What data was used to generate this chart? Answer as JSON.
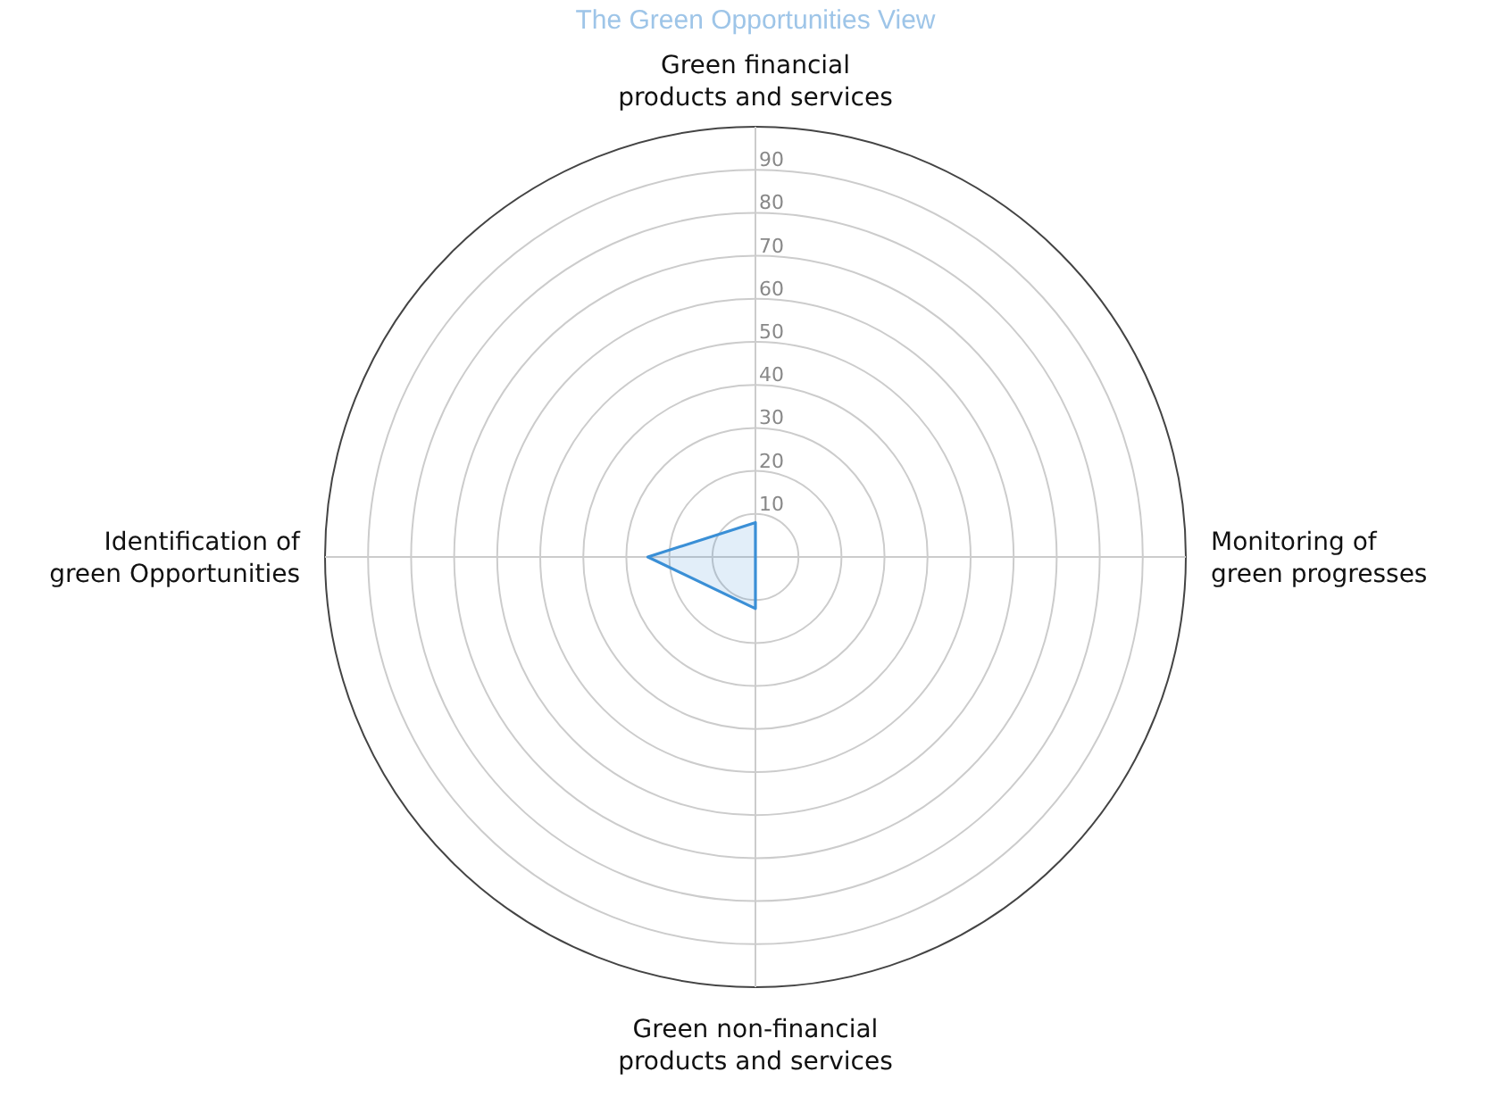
{
  "chart_data": {
    "type": "radar",
    "title": "The Green Opportunities View",
    "categories": [
      "Green financial\nproducts and services",
      "Monitoring of\ngreen progresses",
      "Green non-financial\nproducts and services",
      "Identification of\ngreen Opportunities"
    ],
    "series": [
      {
        "color": "#3a8fd6",
        "values": [
          8,
          0,
          12,
          25
        ]
      }
    ],
    "ylim": [
      0,
      100
    ],
    "yticks": [
      10,
      20,
      30,
      40,
      50,
      60,
      70,
      80,
      90
    ],
    "grid": true
  }
}
